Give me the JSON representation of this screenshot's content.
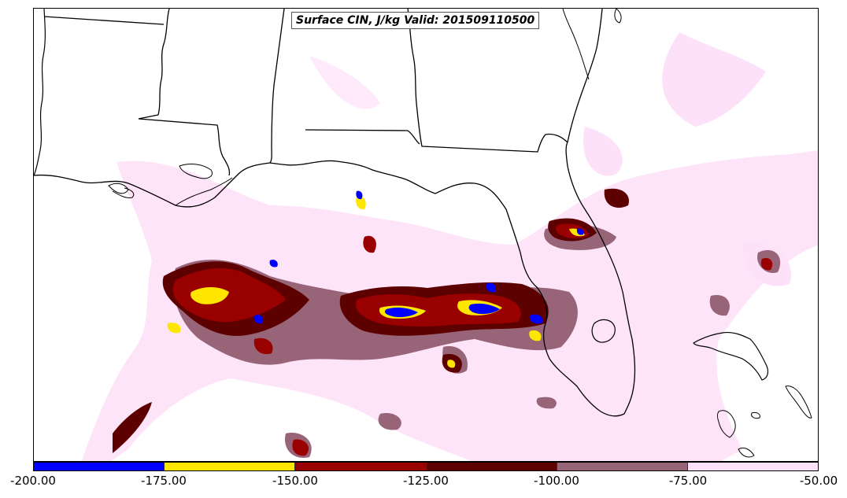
{
  "title": "Surface CIN, J/kg Valid: 201509110500",
  "colorbar": {
    "colors": [
      "#0000ff",
      "#ffe600",
      "#990000",
      "#5c0000",
      "#976478",
      "#fde1f8"
    ],
    "tick_labels": [
      "-200.00",
      "-175.00",
      "-150.00",
      "-125.00",
      "-100.00",
      "-75.00",
      "-50.00"
    ]
  }
}
